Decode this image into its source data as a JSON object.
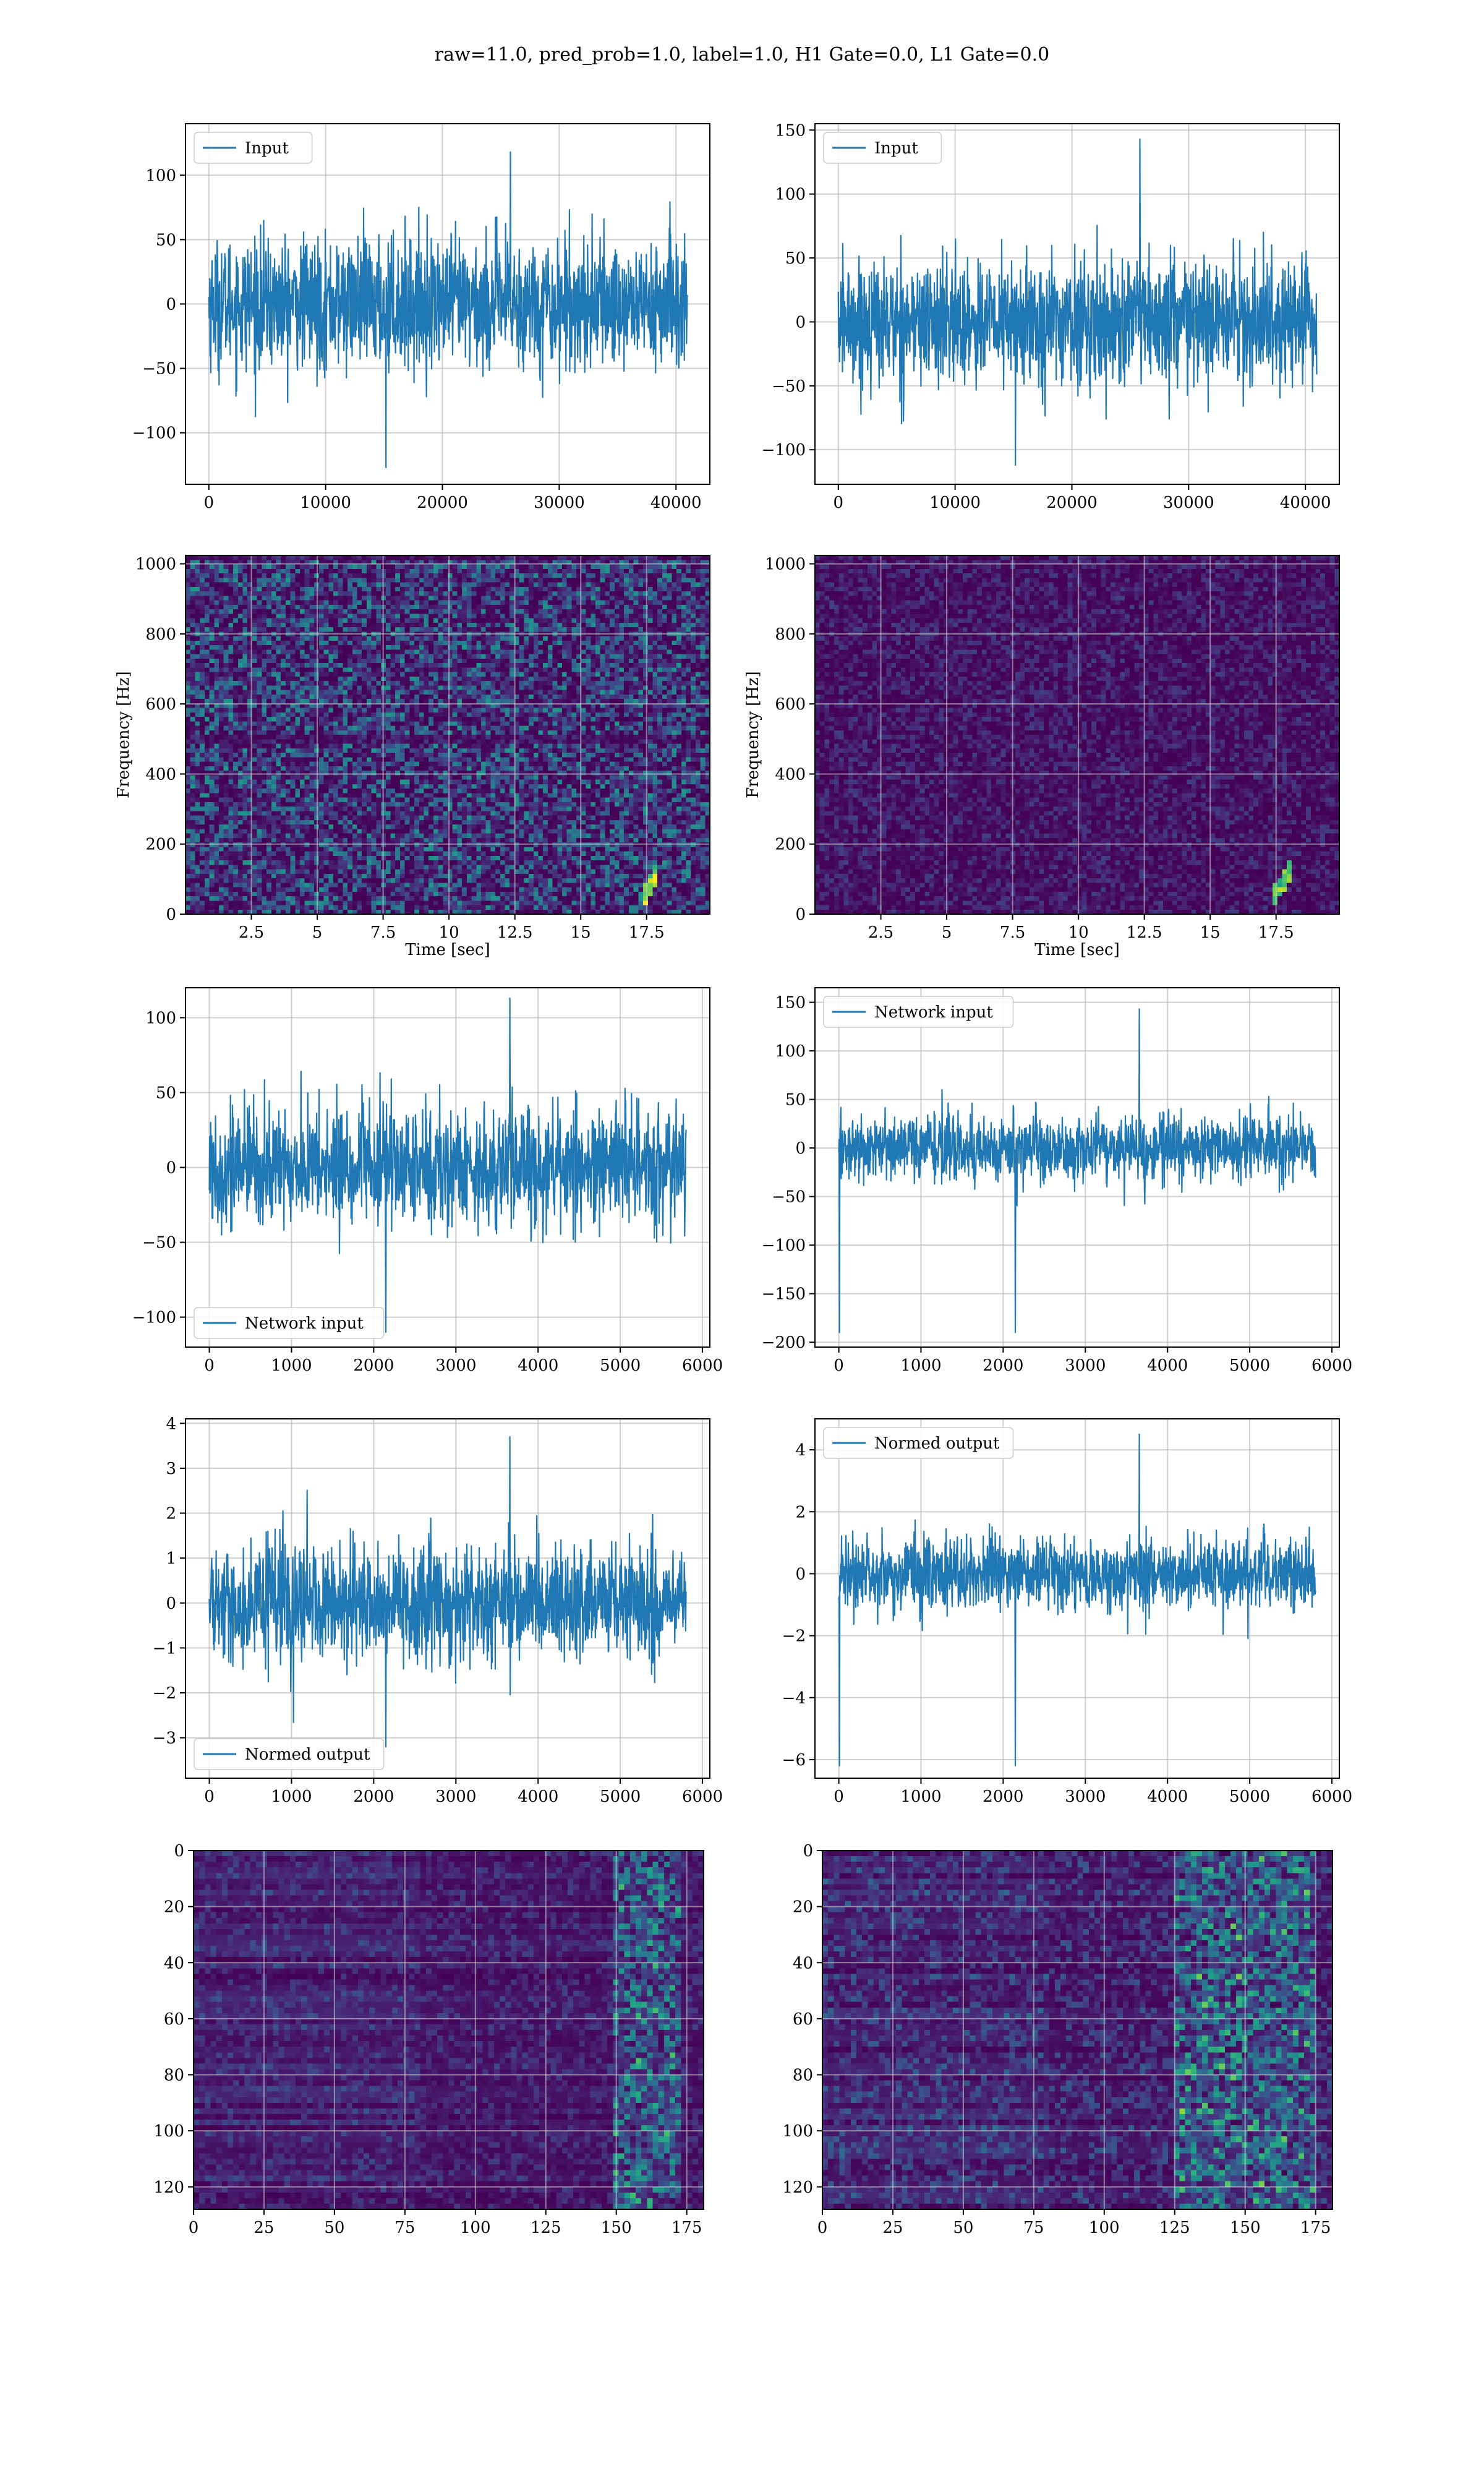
{
  "suptitle": "raw=11.0, pred_prob=1.0, label=1.0, H1 Gate=0.0, L1 Gate=0.0",
  "colors": {
    "line": "#1f77b4",
    "grid": "#b0b0b0",
    "viridis": [
      "#440154",
      "#482878",
      "#3e4a89",
      "#31688e",
      "#26828e",
      "#1f9e89",
      "#35b779",
      "#6ece58",
      "#b5de2b",
      "#fde725"
    ]
  },
  "chart_data": [
    {
      "id": "h1-input",
      "type": "line",
      "title": "",
      "xlabel": "",
      "ylabel": "",
      "legend": {
        "label": "Input",
        "loc": "upper left"
      },
      "grid": true,
      "xlim": [
        -2000,
        42900
      ],
      "ylim": [
        -140,
        140
      ],
      "xticks": [
        0,
        10000,
        20000,
        30000,
        40000
      ],
      "yticks": [
        -100,
        -50,
        0,
        50,
        100
      ],
      "series": [
        {
          "x_range": [
            0,
            40960
          ],
          "n_points": 40960,
          "envelope_mean": [
            -75,
            75
          ],
          "peak_range": [
            -127,
            118
          ],
          "shown_trace_points": 1500
        }
      ]
    },
    {
      "id": "l1-input",
      "type": "line",
      "title": "",
      "xlabel": "",
      "ylabel": "",
      "legend": {
        "label": "Input",
        "loc": "upper left"
      },
      "grid": true,
      "xlim": [
        -2000,
        42900
      ],
      "ylim": [
        -127,
        155
      ],
      "xticks": [
        0,
        10000,
        20000,
        30000,
        40000
      ],
      "yticks": [
        -100,
        -50,
        0,
        50,
        100,
        150
      ],
      "series": [
        {
          "x_range": [
            0,
            40960
          ],
          "n_points": 40960,
          "envelope_mean": [
            -72,
            72
          ],
          "peak_range": [
            -112,
            143
          ],
          "shown_trace_points": 1500
        }
      ]
    },
    {
      "id": "h1-spectrogram",
      "type": "heatmap",
      "title": "",
      "xlabel": "Time [sec]",
      "ylabel": "Frequency [Hz]",
      "grid": true,
      "xlim": [
        0,
        19.9
      ],
      "ylim": [
        0,
        1024
      ],
      "xticks": [
        2.5,
        5.0,
        7.5,
        10.0,
        12.5,
        15.0,
        17.5
      ],
      "yticks": [
        0,
        200,
        400,
        600,
        800,
        1000
      ],
      "grid_size": [
        110,
        80
      ],
      "intensity_level": 0.33,
      "features": [
        {
          "type": "chirp",
          "t": [
            17.3,
            17.9
          ],
          "f": [
            30,
            120
          ]
        },
        {
          "type": "band",
          "f": 500
        },
        {
          "type": "band",
          "f": 1020
        }
      ]
    },
    {
      "id": "l1-spectrogram",
      "type": "heatmap",
      "title": "",
      "xlabel": "Time [sec]",
      "ylabel": "Frequency [Hz]",
      "grid": true,
      "xlim": [
        0,
        19.9
      ],
      "ylim": [
        0,
        1024
      ],
      "xticks": [
        2.5,
        5.0,
        7.5,
        10.0,
        12.5,
        15.0,
        17.5
      ],
      "yticks": [
        0,
        200,
        400,
        600,
        800,
        1000
      ],
      "grid_size": [
        110,
        80
      ],
      "intensity_level": 0.12,
      "features": [
        {
          "type": "chirp",
          "t": [
            17.3,
            18.1
          ],
          "f": [
            40,
            130
          ]
        }
      ]
    },
    {
      "id": "h1-network-input",
      "type": "line",
      "title": "",
      "xlabel": "",
      "ylabel": "",
      "legend": {
        "label": "Network input",
        "loc": "lower left"
      },
      "grid": true,
      "xlim": [
        -290,
        6090
      ],
      "ylim": [
        -120,
        120
      ],
      "xticks": [
        0,
        1000,
        2000,
        3000,
        4000,
        5000,
        6000
      ],
      "yticks": [
        -100,
        -50,
        0,
        50,
        100
      ],
      "series": [
        {
          "x_range": [
            0,
            5800
          ],
          "n_points": 5800,
          "envelope_mean": [
            -60,
            60
          ],
          "peak_range": [
            -110,
            113
          ],
          "shown_trace_points": 1400
        }
      ]
    },
    {
      "id": "l1-network-input",
      "type": "line",
      "title": "",
      "xlabel": "",
      "ylabel": "",
      "legend": {
        "label": "Network input",
        "loc": "upper left"
      },
      "grid": true,
      "xlim": [
        -290,
        6090
      ],
      "ylim": [
        -205,
        165
      ],
      "xticks": [
        0,
        1000,
        2000,
        3000,
        4000,
        5000,
        6000
      ],
      "yticks": [
        -200,
        -150,
        -100,
        -50,
        0,
        50,
        100,
        150
      ],
      "series": [
        {
          "x_range": [
            0,
            5800
          ],
          "n_points": 5800,
          "envelope_mean": [
            -50,
            50
          ],
          "peak_range": [
            -190,
            143
          ],
          "shown_trace_points": 1400
        }
      ]
    },
    {
      "id": "h1-normed-output",
      "type": "line",
      "title": "",
      "xlabel": "",
      "ylabel": "",
      "legend": {
        "label": "Normed output",
        "loc": "lower left"
      },
      "grid": true,
      "xlim": [
        -290,
        6090
      ],
      "ylim": [
        -3.9,
        4.1
      ],
      "xticks": [
        0,
        1000,
        2000,
        3000,
        4000,
        5000,
        6000
      ],
      "yticks": [
        -3,
        -2,
        -1,
        0,
        1,
        2,
        3,
        4
      ],
      "series": [
        {
          "x_range": [
            0,
            5800
          ],
          "n_points": 5800,
          "envelope_mean": [
            -1.9,
            1.9
          ],
          "peak_range": [
            -3.2,
            3.7
          ],
          "shown_trace_points": 1400
        }
      ]
    },
    {
      "id": "l1-normed-output",
      "type": "line",
      "title": "",
      "xlabel": "",
      "ylabel": "",
      "legend": {
        "label": "Normed output",
        "loc": "upper left"
      },
      "grid": true,
      "xlim": [
        -290,
        6090
      ],
      "ylim": [
        -6.6,
        5.0
      ],
      "xticks": [
        0,
        1000,
        2000,
        3000,
        4000,
        5000,
        6000
      ],
      "yticks": [
        -6,
        -4,
        -2,
        0,
        2,
        4
      ],
      "series": [
        {
          "x_range": [
            0,
            5800
          ],
          "n_points": 5800,
          "envelope_mean": [
            -1.8,
            1.8
          ],
          "peak_range": [
            -6.2,
            4.5
          ],
          "shown_trace_points": 1400
        }
      ]
    },
    {
      "id": "h1-feature-map",
      "type": "heatmap",
      "title": "",
      "xlabel": "",
      "ylabel": "",
      "grid": true,
      "xlim": [
        0,
        181
      ],
      "ylim": [
        128,
        0
      ],
      "y_inverted": true,
      "xticks": [
        0,
        25,
        50,
        75,
        100,
        125,
        150,
        175
      ],
      "yticks": [
        0,
        20,
        40,
        60,
        80,
        100,
        120
      ],
      "grid_size": [
        90,
        64
      ],
      "intensity_level": 0.12,
      "features": [
        {
          "type": "column_band",
          "x": [
            148,
            172
          ]
        }
      ]
    },
    {
      "id": "l1-feature-map",
      "type": "heatmap",
      "title": "",
      "xlabel": "",
      "ylabel": "",
      "grid": true,
      "xlim": [
        0,
        181
      ],
      "ylim": [
        128,
        0
      ],
      "y_inverted": true,
      "xticks": [
        0,
        25,
        50,
        75,
        100,
        125,
        150,
        175
      ],
      "yticks": [
        0,
        20,
        40,
        60,
        80,
        100,
        120
      ],
      "grid_size": [
        90,
        64
      ],
      "intensity_level": 0.18,
      "features": [
        {
          "type": "column_band",
          "x": [
            125,
            175
          ]
        }
      ]
    }
  ]
}
